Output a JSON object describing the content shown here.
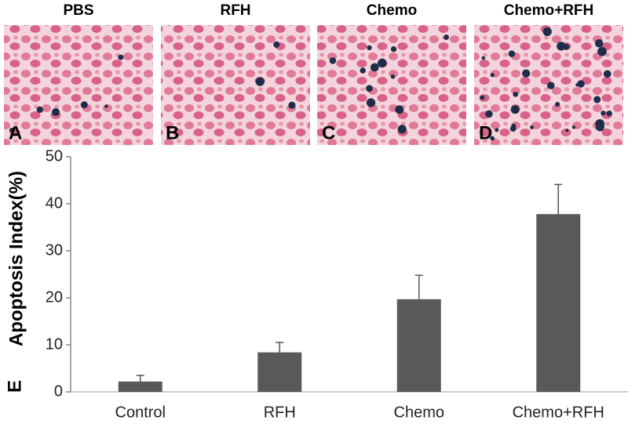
{
  "panels": [
    {
      "title": "PBS",
      "letter": "A"
    },
    {
      "title": "RFH",
      "letter": "B"
    },
    {
      "title": "Chemo",
      "letter": "C"
    },
    {
      "title": "Chemo+RFH",
      "letter": "D"
    }
  ],
  "panel_label": "E",
  "chart_data": {
    "type": "bar",
    "y_label": "Apoptosis Index(%)",
    "categories": [
      "Control",
      "RFH",
      "Chemo",
      "Chemo+RFH"
    ],
    "values": [
      2.2,
      8.4,
      19.7,
      37.8
    ],
    "errors": [
      1.3,
      2.1,
      5.1,
      6.3
    ],
    "color": "#595959",
    "ylim": [
      0,
      50
    ],
    "yticks": [
      0,
      10,
      20,
      30,
      40,
      50
    ],
    "grid": false
  }
}
